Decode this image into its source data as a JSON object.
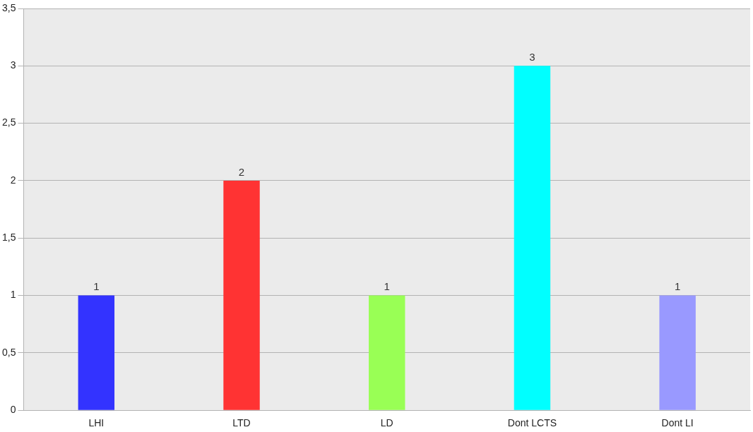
{
  "chart_data": {
    "type": "bar",
    "categories": [
      "LHI",
      "LTD",
      "LD",
      "Dont LCTS",
      "Dont LI"
    ],
    "values": [
      1,
      2,
      1,
      3,
      1
    ],
    "colors": [
      "#3333ff",
      "#ff3333",
      "#99ff55",
      "#00ffff",
      "#9999ff"
    ],
    "ylim": [
      0,
      3.5
    ],
    "yticks": [
      0,
      {
        "value": 0.5,
        "label": "0,5"
      },
      1,
      {
        "value": 1.5,
        "label": "1,5"
      },
      2,
      {
        "value": 2.5,
        "label": "2,5"
      },
      3,
      {
        "value": 3.5,
        "label": "3,5"
      }
    ],
    "grid": "y",
    "legend": false,
    "data_labels": true
  }
}
